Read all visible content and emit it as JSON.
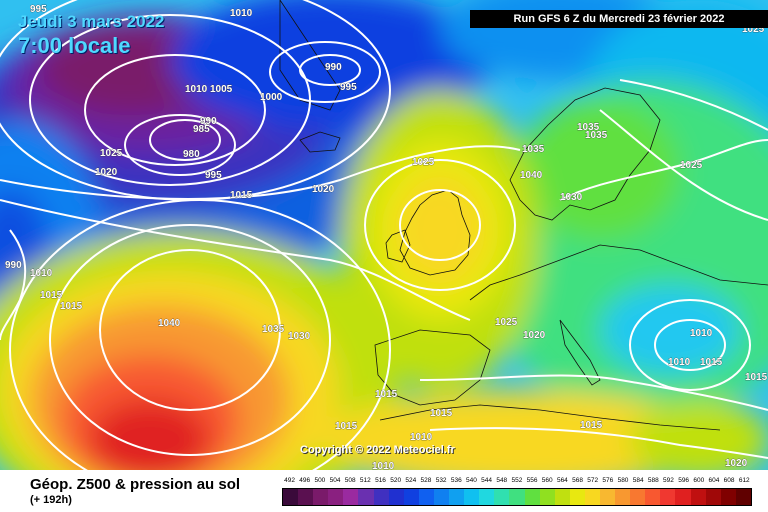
{
  "header": {
    "date": "Jeudi 3 mars 2022",
    "time": "7:00 locale",
    "run": "Run GFS 6 Z du Mercredi 23 février 2022"
  },
  "copyright": "Copyright © 2022 Meteociel.fr",
  "footer": {
    "title": "Géop. Z500 & pression au sol",
    "subtitle": "(+ 192h)"
  },
  "legend": {
    "labels": [
      "492",
      "496",
      "500",
      "504",
      "508",
      "512",
      "516",
      "520",
      "524",
      "528",
      "532",
      "536",
      "540",
      "544",
      "548",
      "552",
      "556",
      "560",
      "564",
      "568",
      "572",
      "576",
      "580",
      "584",
      "588",
      "592",
      "596",
      "600",
      "604",
      "608",
      "612"
    ],
    "colors": [
      "#3a0a3a",
      "#5a1050",
      "#7a1a6a",
      "#8a2080",
      "#9a2aa0",
      "#6a30b0",
      "#4030c0",
      "#2030d0",
      "#1040e0",
      "#1060f0",
      "#1080f0",
      "#10a0f0",
      "#10c0f0",
      "#20d8e0",
      "#30e0b0",
      "#40e080",
      "#60e040",
      "#90e020",
      "#c0e010",
      "#e8e810",
      "#f8d820",
      "#f8b830",
      "#f89830",
      "#f87830",
      "#f85830",
      "#f03830",
      "#e02020",
      "#c01010",
      "#a00808",
      "#800000",
      "#600000"
    ]
  },
  "isobar_labels": [
    "995",
    "1010",
    "1025",
    "1025",
    "990",
    "995",
    "1010",
    "1005",
    "1000",
    "990",
    "985",
    "980",
    "995",
    "1025",
    "1020",
    "1015",
    "1020",
    "1025",
    "1035",
    "1035",
    "1035",
    "1040",
    "1030",
    "1025",
    "990",
    "1010",
    "1015",
    "1015",
    "1040",
    "1035",
    "1030",
    "1025",
    "1020",
    "1010",
    "1010",
    "1015",
    "1015",
    "1015",
    "1015",
    "1015",
    "1010",
    "1010",
    "1015",
    "1020"
  ]
}
